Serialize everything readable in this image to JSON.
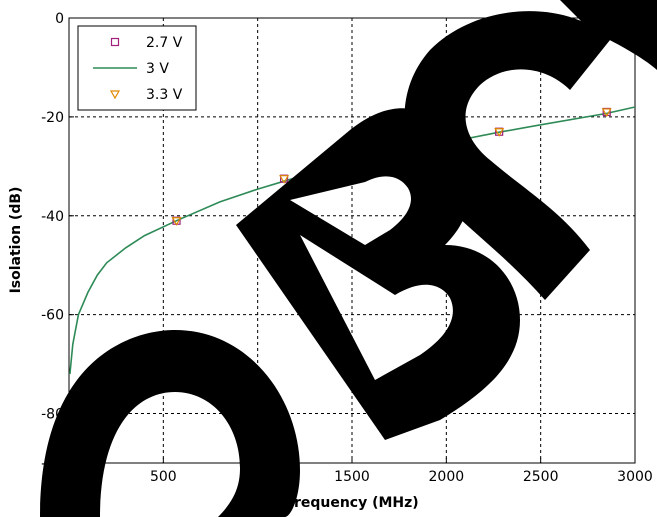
{
  "chart_data": {
    "type": "line",
    "title": "",
    "xlabel": "Frequency (MHz)",
    "ylabel": "Isolation (dB)",
    "xlim": [
      0,
      3000
    ],
    "ylim": [
      -90,
      0
    ],
    "xticks": [
      0,
      500,
      1000,
      1500,
      2000,
      2500,
      3000
    ],
    "yticks": [
      -90,
      -80,
      -60,
      -40,
      -20,
      0
    ],
    "grid": true,
    "legend_position": "top-left",
    "watermark": "OBSO",
    "x": [
      5,
      20,
      50,
      100,
      150,
      200,
      300,
      400,
      570,
      800,
      1000,
      1140,
      1300,
      1500,
      1710,
      2000,
      2280,
      2500,
      2850,
      3000
    ],
    "series": [
      {
        "name": "2.7 V",
        "style": "markers",
        "marker": "square",
        "color": "#a0207a",
        "points": [
          [
            570,
            -41
          ],
          [
            1140,
            -32.5
          ],
          [
            1710,
            -27.5
          ],
          [
            2280,
            -23
          ],
          [
            2850,
            -19
          ]
        ]
      },
      {
        "name": "3 V",
        "style": "line",
        "color": "#2e8b57",
        "values": [
          -72,
          -66,
          -60,
          -55.5,
          -52,
          -49.5,
          -46.5,
          -44,
          -41,
          -37.2,
          -34.6,
          -33,
          -31.2,
          -29.2,
          -27.3,
          -25.2,
          -23.1,
          -21.6,
          -19.3,
          -18
        ]
      },
      {
        "name": "3.3 V",
        "style": "markers",
        "marker": "triangle-down",
        "color": "#e08a00",
        "points": [
          [
            570,
            -41
          ],
          [
            1140,
            -32.5
          ],
          [
            1710,
            -27.5
          ],
          [
            2280,
            -23
          ],
          [
            2850,
            -19
          ]
        ]
      }
    ]
  }
}
